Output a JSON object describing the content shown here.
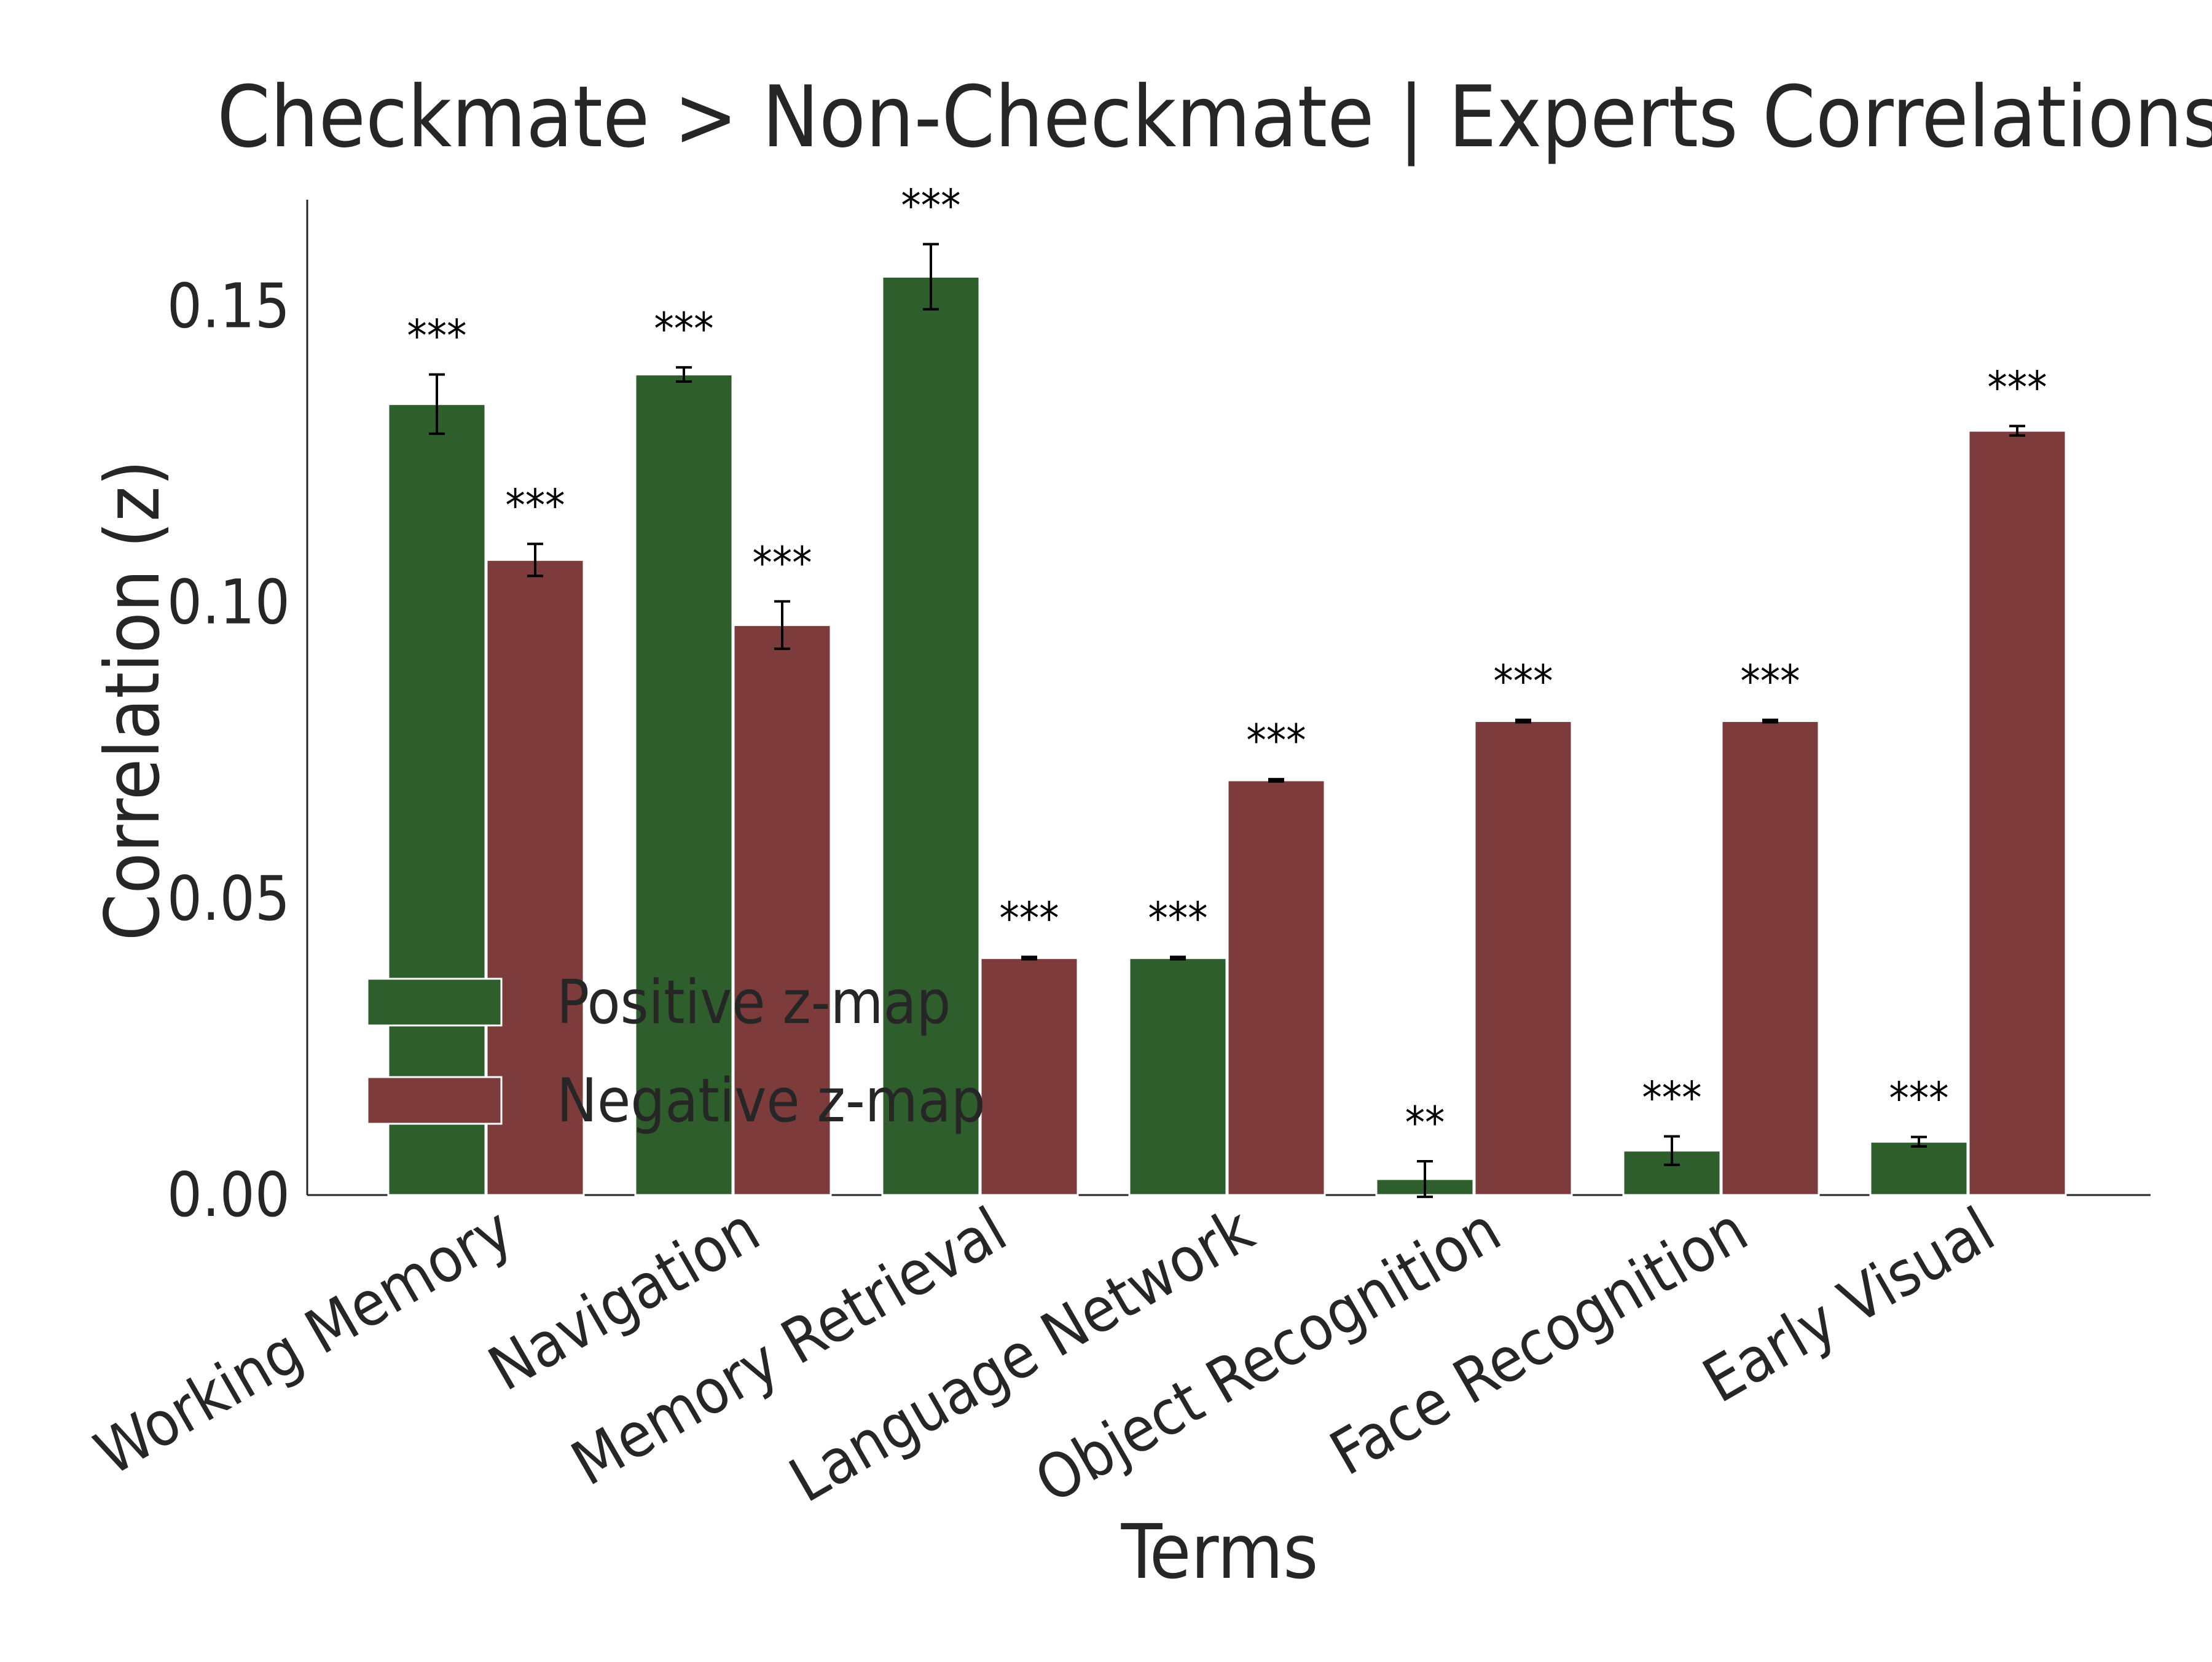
{
  "chart_data": {
    "type": "bar",
    "title": "Checkmate > Non-Checkmate | Experts Correlations",
    "xlabel": "Terms",
    "ylabel": "Correlation (z)",
    "categories": [
      "Working Memory",
      "Navigation",
      "Memory Retrieval",
      "Language Network",
      "Object Recognition",
      "Face Recognition",
      "Early Visual"
    ],
    "ylim": [
      0,
      0.168
    ],
    "yticks": [
      "0.00",
      "0.05",
      "0.10",
      "0.15"
    ],
    "ytick_values": [
      0,
      0.05,
      0.1,
      0.15
    ],
    "grid": false,
    "legend_position": "center-left",
    "series": [
      {
        "name": "Positive z-map",
        "color": "#2d5e2c",
        "values": [
          0.1335,
          0.1385,
          0.155,
          0.04,
          0.0027,
          0.0075,
          0.009
        ],
        "errors": [
          0.005,
          0.0012,
          0.0055,
          0.0002,
          0.003,
          0.0024,
          0.0008
        ],
        "significance": [
          "***",
          "***",
          "***",
          "***",
          "**",
          "***",
          "***"
        ]
      },
      {
        "name": "Negative z-map",
        "color": "#7e3b3c",
        "values": [
          0.1072,
          0.0962,
          0.04,
          0.07,
          0.08,
          0.08,
          0.129
        ],
        "errors": [
          0.0027,
          0.004,
          0.0002,
          0.0002,
          0.0002,
          0.0002,
          0.0008
        ],
        "significance": [
          "***",
          "***",
          "***",
          "***",
          "***",
          "***",
          "***"
        ]
      }
    ]
  }
}
